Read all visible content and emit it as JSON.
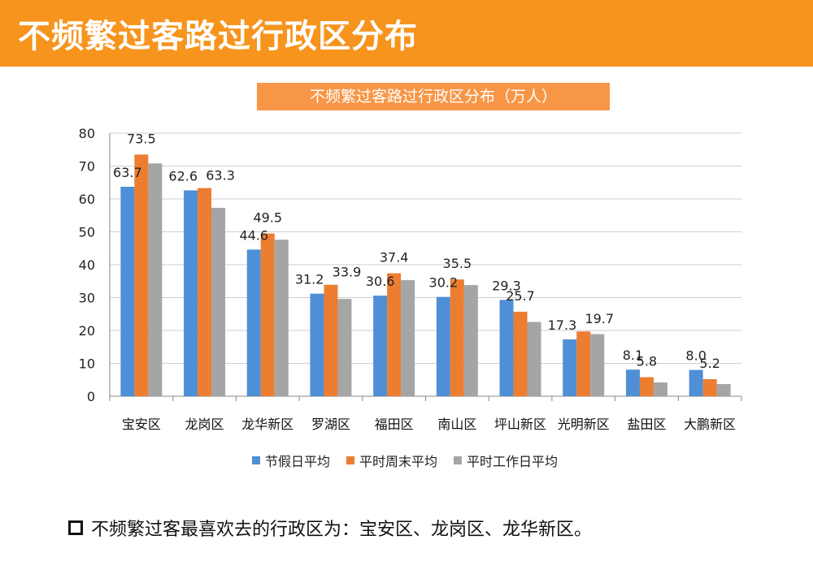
{
  "header": {
    "title": "不频繁过客路过行政区分布"
  },
  "chart_data": {
    "type": "bar",
    "title": "不频繁过客路过行政区分布（万人）",
    "categories": [
      "宝安区",
      "龙岗区",
      "龙华新区",
      "罗湖区",
      "福田区",
      "南山区",
      "坪山新区",
      "光明新区",
      "盐田区",
      "大鹏新区"
    ],
    "series": [
      {
        "name": "节假日平均",
        "color": "#4f8fd6",
        "values": [
          63.7,
          62.6,
          44.6,
          31.2,
          30.6,
          30.2,
          29.3,
          17.3,
          8.1,
          8.0
        ],
        "labels": [
          "63.7",
          "62.6",
          "44.6",
          "31.2",
          "30.6",
          "30.2",
          "29.3",
          "17.3",
          "8.1",
          "8.0"
        ]
      },
      {
        "name": "平时周末平均",
        "color": "#ec7d31",
        "values": [
          73.5,
          63.3,
          49.5,
          33.9,
          37.4,
          35.5,
          25.7,
          19.7,
          5.8,
          5.2
        ],
        "labels": [
          "73.5",
          "63.3",
          "49.5",
          "33.9",
          "37.4",
          "35.5",
          "25.7",
          "19.7",
          "5.8",
          "5.2"
        ]
      },
      {
        "name": "平时工作日平均",
        "color": "#a5a5a5",
        "values": [
          70.8,
          57.3,
          47.6,
          29.6,
          35.3,
          33.8,
          22.6,
          18.9,
          4.2,
          3.7
        ],
        "labels": [
          "",
          "",
          "",
          "",
          "",
          "",
          "",
          "",
          "",
          ""
        ]
      }
    ],
    "yticks": [
      "0",
      "10",
      "20",
      "30",
      "40",
      "50",
      "60",
      "70",
      "80"
    ],
    "ylim": [
      0,
      80
    ],
    "grid": true,
    "legend_position": "bottom"
  },
  "note": {
    "text": "不频繁过客最喜欢去的行政区为：宝安区、龙岗区、龙华新区。"
  }
}
